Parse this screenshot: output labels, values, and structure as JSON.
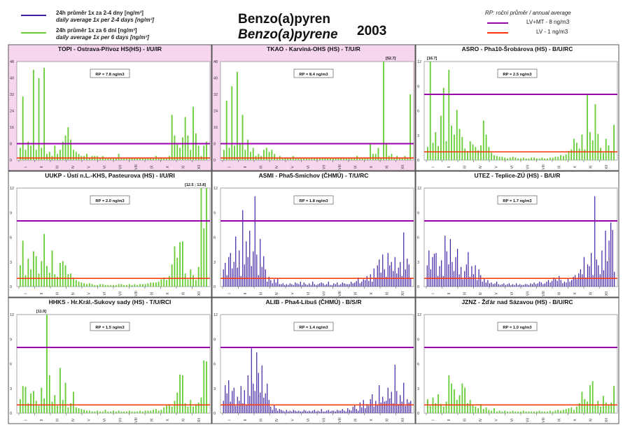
{
  "header": {
    "title_cz": "Benzo(a)pyren",
    "title_en": "Benzo(a)pyrene",
    "year": "2003",
    "legend_left": [
      {
        "color": "#3f1fa0",
        "line1": "24h průměr 1x za 2-4 dny [ng/m³]",
        "line2": "daily average 1x per 2-4 days [ng/m³]"
      },
      {
        "color": "#66cc33",
        "line1": "24h průměr 1x za 6 dní [ng/m³]",
        "line2": "daily average 1x per 6 days [ng/m³]"
      }
    ],
    "legend_right": {
      "title": "RP: roční průměr / annual average",
      "items": [
        {
          "color": "#9900aa",
          "label": "LV+MT - 8 ng/m3"
        },
        {
          "color": "#ff3300",
          "label": "LV   - 1 ng/m3"
        }
      ]
    }
  },
  "colors": {
    "green": "#66cc33",
    "blue": "#3f1fa0",
    "lv_mt": "#9900aa",
    "lv": "#ff3300",
    "pink_bg": "#f6d6ee",
    "frame": "#555555"
  },
  "chart_data": [
    {
      "type": "bar",
      "title": "TOPI - Ostrava-Přívoz HS(HS) - I/U/IR",
      "rp": "RP = 7.8 ng/m3",
      "ylim": [
        0,
        48
      ],
      "yticks": [
        "0",
        "8",
        "16",
        "24",
        "32",
        "40",
        "48"
      ],
      "series_color": "green",
      "pink": true,
      "annotation": "",
      "months": [
        "I",
        "II",
        "III",
        "IV",
        "V",
        "VI",
        "VII",
        "VIII",
        "IX",
        "X",
        "XI",
        "XII"
      ],
      "lines": [
        8,
        1
      ],
      "values": [
        6,
        31,
        5,
        9,
        7,
        44,
        5,
        40,
        6,
        45,
        3,
        4,
        2,
        7,
        3,
        5,
        9,
        12,
        16,
        10,
        5,
        4,
        3,
        2,
        2,
        3,
        1,
        2,
        2,
        2,
        1,
        2,
        1,
        1,
        1,
        1,
        1,
        3,
        1,
        1,
        1,
        1,
        1,
        1,
        1,
        1,
        1,
        1,
        1,
        1,
        1,
        2,
        1,
        1,
        1,
        1,
        2,
        22,
        12,
        8,
        6,
        11,
        21,
        12,
        5,
        26,
        13,
        7,
        2,
        7,
        9
      ]
    },
    {
      "type": "bar",
      "title": "TKAO - Karviná-OHS (HS) - T/U/R",
      "rp": "RP = 8.4 ng/m3",
      "ylim": [
        0,
        48
      ],
      "yticks": [
        "0",
        "8",
        "16",
        "24",
        "32",
        "40",
        "48"
      ],
      "series_color": "green",
      "pink": true,
      "annotation": "[52.7]",
      "months": [
        "I",
        "II",
        "III",
        "IV",
        "V",
        "VI",
        "VII",
        "VIII",
        "IX",
        "X",
        "XI",
        "XII"
      ],
      "lines": [
        8,
        1
      ],
      "values": [
        5,
        29,
        6,
        36,
        7,
        43,
        8,
        22,
        5,
        10,
        4,
        6,
        2,
        3,
        2,
        5,
        6,
        4,
        5,
        3,
        1,
        2,
        1,
        1,
        1,
        1,
        2,
        1,
        1,
        1,
        1,
        1,
        1,
        1,
        1,
        1,
        1,
        1,
        1,
        1,
        1,
        1,
        1,
        1,
        1,
        1,
        1,
        1,
        1,
        1,
        2,
        1,
        1,
        1,
        1,
        8,
        3,
        3,
        6,
        1,
        48,
        8,
        2,
        3,
        1,
        2,
        1,
        1,
        2,
        1,
        32
      ]
    },
    {
      "type": "bar",
      "title": "ASRO - Pha10-Šrobárova (HS) - B/U/RC",
      "rp": "RP = 2.5 ng/m3",
      "ylim": [
        0,
        12
      ],
      "yticks": [
        "0",
        "3",
        "6",
        "9",
        "12"
      ],
      "series_color": "green",
      "pink": false,
      "annotation": "[16.7]",
      "months": [
        "I",
        "II",
        "III",
        "IV",
        "V",
        "VI",
        "VII",
        "VIII",
        "IX",
        "X",
        "XI",
        "XII"
      ],
      "lines": [
        8,
        1
      ],
      "values": [
        1.6,
        12,
        2.1,
        3.4,
        1.7,
        5.4,
        8.8,
        2.3,
        11,
        4.2,
        3.1,
        6.1,
        3.8,
        2.8,
        1.4,
        1.1,
        2.3,
        1.9,
        1.6,
        1.2,
        1.8,
        4.8,
        3.1,
        1.6,
        0.9,
        0.6,
        0.5,
        0.4,
        0.4,
        0.3,
        0.2,
        0.3,
        0.4,
        0.3,
        0.2,
        0.2,
        0.3,
        0.2,
        0.2,
        0.3,
        0.3,
        0.2,
        0.2,
        0.3,
        0.2,
        0.2,
        0.3,
        0.3,
        0.4,
        0.4,
        0.6,
        0.5,
        0.7,
        1.1,
        1.3,
        2.6,
        2.1,
        1.4,
        3.1,
        1.3,
        7.9,
        3.4,
        2.4,
        6.8,
        3.2,
        1.5,
        0.9,
        2.6,
        1.8,
        1.1,
        4.3
      ]
    },
    {
      "type": "bar",
      "title": "UUKP - Ústí n.L.-KHS, Pasteurova (HS) - I/U/RI",
      "rp": "RP = 2.0 ng/m3",
      "ylim": [
        0,
        12
      ],
      "yticks": [
        "0",
        "3",
        "6",
        "9",
        "12"
      ],
      "series_color": "green",
      "pink": false,
      "annotation": "[12.5 ; 13.8]",
      "months": [
        "I",
        "II",
        "III",
        "IV",
        "V",
        "VI",
        "VII",
        "VIII",
        "IX",
        "X",
        "XI",
        "XII"
      ],
      "lines": [
        8,
        1
      ],
      "values": [
        2.6,
        5.6,
        1.4,
        3.4,
        2.1,
        4.3,
        3.7,
        1.6,
        3.1,
        6.4,
        2.5,
        1.7,
        4.4,
        1.5,
        1.2,
        2.9,
        3.1,
        2.6,
        1.5,
        1.6,
        1.1,
        0.8,
        0.6,
        0.5,
        0.4,
        0.3,
        0.4,
        0.3,
        0.2,
        0.2,
        0.3,
        0.3,
        0.2,
        0.2,
        0.2,
        0.2,
        0.2,
        0.3,
        0.3,
        0.2,
        0.2,
        0.3,
        0.2,
        0.3,
        0.2,
        0.3,
        0.3,
        0.3,
        0.4,
        0.5,
        0.5,
        0.5,
        0.6,
        0.9,
        1.1,
        0.8,
        1.3,
        2.7,
        4.9,
        3.5,
        5.4,
        5.5,
        1.6,
        0.9,
        2.1,
        1.4,
        0.8,
        2.4,
        12,
        7.1,
        12
      ]
    },
    {
      "type": "bar",
      "title": "ASMI - Pha5-Smíchov (ČHMÚ) - T/U/RC",
      "rp": "RP = 1.8 ng/m3",
      "ylim": [
        0,
        12
      ],
      "yticks": [
        "0",
        "3",
        "6",
        "9",
        "12"
      ],
      "series_color": "blue",
      "pink": false,
      "annotation": "",
      "months": [
        "I",
        "II",
        "III",
        "IV",
        "V",
        "VI",
        "VII",
        "VIII",
        "IX",
        "X",
        "XI",
        "XII"
      ],
      "lines": [
        8,
        1
      ],
      "values": [
        2.1,
        2.9,
        1.4,
        3.6,
        4.1,
        2.2,
        3.0,
        6.1,
        2.3,
        4.4,
        1.3,
        9.3,
        2.7,
        5.5,
        3.6,
        6.8,
        2.5,
        4.3,
        11.0,
        3.9,
        1.4,
        5.8,
        2.4,
        3.7,
        2.1,
        0.6,
        1.2,
        0.8,
        0.4,
        0.9,
        0.5,
        1.0,
        0.3,
        0.3,
        0.4,
        0.2,
        0.3,
        0.2,
        0.4,
        0.3,
        0.2,
        0.5,
        0.4,
        0.3,
        0.6,
        0.2,
        0.5,
        0.3,
        0.2,
        0.4,
        0.2,
        0.6,
        0.3,
        0.2,
        0.3,
        0.4,
        0.5,
        0.4,
        0.2,
        0.3,
        0.6,
        0.2,
        0.2,
        0.4,
        0.3,
        0.5,
        0.2,
        0.3,
        0.5,
        0.4,
        0.3,
        0.3,
        0.3,
        0.6,
        0.4,
        0.5,
        0.7,
        1.1,
        0.4,
        0.6,
        0.9,
        0.8,
        1.3,
        0.7,
        1.5,
        0.6,
        2.2,
        1.1,
        2.6,
        3.3,
        1.7,
        3.9,
        2.1,
        1.2,
        4.1,
        2.6,
        3.0,
        1.9,
        3.6,
        1.6,
        2.3,
        3.0,
        1.3,
        6.6,
        2.1,
        3.4,
        2.7,
        1.1
      ]
    },
    {
      "type": "bar",
      "title": "UTEZ - Teplice-ZÚ (HS) - B/U/R",
      "rp": "RP = 1.7 ng/m3",
      "ylim": [
        0,
        12
      ],
      "yticks": [
        "0",
        "3",
        "6",
        "9",
        "12"
      ],
      "series_color": "blue",
      "pink": false,
      "annotation": "",
      "months": [
        "I",
        "II",
        "III",
        "IV",
        "V",
        "VI",
        "VII",
        "VIII",
        "IX",
        "X",
        "XI",
        "XII"
      ],
      "lines": [
        8,
        1
      ],
      "values": [
        2.6,
        4.4,
        2.1,
        3.6,
        4.0,
        4.1,
        1.3,
        2.5,
        3.2,
        1.3,
        6.2,
        4.3,
        2.7,
        5.8,
        3.0,
        1.9,
        3.6,
        4.6,
        1.5,
        2.4,
        0.9,
        1.9,
        2.7,
        4.2,
        1.2,
        2.5,
        1.5,
        2.6,
        0.8,
        2.1,
        1.4,
        0.6,
        1.0,
        0.5,
        0.8,
        0.4,
        0.5,
        0.3,
        0.4,
        0.6,
        0.3,
        0.2,
        0.3,
        0.4,
        0.2,
        0.3,
        0.4,
        0.2,
        0.3,
        0.2,
        0.4,
        0.2,
        0.3,
        0.2,
        0.2,
        0.3,
        0.3,
        0.2,
        0.4,
        0.3,
        0.5,
        0.3,
        0.4,
        0.6,
        0.5,
        0.3,
        0.4,
        0.6,
        0.8,
        0.5,
        0.7,
        1.1,
        0.9,
        0.7,
        1.3,
        0.8,
        0.4,
        0.6,
        0.5,
        1.0,
        0.6,
        0.8,
        1.2,
        1.4,
        0.9,
        1.6,
        2.1,
        1.5,
        3.6,
        1.1,
        2.7,
        2.5,
        4.1,
        1.4,
        11.0,
        3.3,
        2.6,
        1.5,
        4.4,
        2.0,
        6.8,
        3.1,
        5.6,
        7.8,
        6.9,
        1.8
      ]
    },
    {
      "type": "bar",
      "title": "HHKS - Hr.Král.-Sukovy sady (HS) - T/U/RCI",
      "rp": "RP = 1.5 ng/m3",
      "ylim": [
        0,
        12
      ],
      "yticks": [
        "0",
        "3",
        "6",
        "9",
        "12"
      ],
      "series_color": "green",
      "pink": false,
      "annotation": "[11.9]",
      "months": [
        "I",
        "II",
        "III",
        "IV",
        "V",
        "VI",
        "VII",
        "VIII",
        "IX",
        "X",
        "XI",
        "XII"
      ],
      "lines": [
        8,
        1
      ],
      "values": [
        1.7,
        3.3,
        3.2,
        1.2,
        2.4,
        2.7,
        1.5,
        0.9,
        3.1,
        1.8,
        12,
        4.6,
        1.4,
        2.2,
        0.9,
        5.5,
        1.6,
        3.7,
        0.7,
        1.2,
        2.6,
        0.7,
        0.6,
        0.5,
        0.4,
        0.3,
        0.3,
        0.2,
        0.2,
        0.3,
        0.2,
        0.2,
        0.4,
        0.2,
        0.2,
        0.3,
        0.2,
        0.3,
        0.2,
        0.2,
        0.2,
        0.3,
        0.2,
        0.2,
        0.2,
        0.3,
        0.2,
        0.3,
        0.3,
        0.3,
        0.4,
        0.5,
        0.3,
        0.4,
        0.7,
        1.0,
        1.1,
        0.8,
        1.5,
        2.5,
        4.7,
        4.6,
        1.2,
        0.8,
        1.6,
        0.8,
        1.1,
        1.3,
        1.9,
        6.4,
        6.3
      ]
    },
    {
      "type": "bar",
      "title": "ALIB - Pha4-Libuš (ČHMÚ) - B/S/R",
      "rp": "RP = 1.4 ng/m3",
      "ylim": [
        0,
        12
      ],
      "yticks": [
        "0",
        "3",
        "6",
        "9",
        "12"
      ],
      "series_color": "blue",
      "pink": false,
      "annotation": "",
      "months": [
        "I",
        "II",
        "III",
        "IV",
        "V",
        "VI",
        "VII",
        "VIII",
        "IX",
        "X",
        "XI",
        "XII"
      ],
      "lines": [
        8,
        1
      ],
      "values": [
        1.5,
        3.4,
        2.4,
        4.0,
        1.4,
        2.7,
        3.1,
        0.9,
        2.0,
        1.5,
        3.3,
        1.2,
        2.8,
        1.0,
        4.6,
        2.1,
        7.9,
        3.6,
        2.7,
        7.4,
        4.9,
        2.5,
        5.8,
        1.9,
        2.4,
        3.6,
        1.6,
        0.8,
        0.4,
        1.0,
        0.6,
        0.3,
        0.5,
        0.4,
        0.3,
        0.2,
        0.4,
        0.2,
        0.3,
        0.2,
        0.4,
        0.3,
        0.2,
        0.3,
        0.2,
        0.2,
        0.4,
        0.3,
        0.2,
        0.3,
        0.2,
        0.3,
        0.4,
        0.2,
        0.3,
        0.2,
        0.5,
        0.2,
        0.2,
        0.3,
        0.4,
        0.2,
        0.3,
        0.3,
        0.2,
        0.4,
        0.3,
        0.3,
        0.5,
        0.3,
        0.2,
        0.6,
        0.4,
        0.3,
        0.8,
        1.0,
        0.5,
        0.3,
        1.3,
        0.7,
        1.6,
        0.6,
        1.1,
        0.9,
        1.7,
        2.3,
        0.8,
        1.5,
        1.0,
        3.4,
        1.3,
        2.0,
        1.4,
        1.5,
        3.1,
        1.8,
        2.6,
        1.2,
        5.9,
        2.7,
        1.1,
        2.2,
        1.4,
        3.7,
        0.9,
        1.7,
        1.3,
        1.5
      ]
    },
    {
      "type": "bar",
      "title": "JZNZ - Žďár nad Sázavou (HS) - B/U/RC",
      "rp": "RP = 1.0 ng/m3",
      "ylim": [
        0,
        12
      ],
      "yticks": [
        "0",
        "3",
        "6",
        "9",
        "12"
      ],
      "series_color": "green",
      "pink": false,
      "annotation": "",
      "months": [
        "I",
        "II",
        "III",
        "IV",
        "V",
        "VI",
        "VII",
        "VIII",
        "IX",
        "X",
        "XI",
        "XII"
      ],
      "lines": [
        8,
        1
      ],
      "values": [
        1.7,
        0.9,
        1.9,
        1.2,
        2.3,
        1.1,
        0.8,
        1.4,
        4.6,
        3.6,
        2.9,
        1.6,
        2.2,
        3.6,
        3.1,
        1.2,
        1.6,
        1.0,
        0.8,
        0.6,
        1.1,
        0.5,
        0.7,
        0.4,
        0.3,
        0.6,
        0.2,
        0.3,
        0.2,
        0.3,
        0.2,
        0.2,
        0.3,
        0.2,
        0.2,
        0.2,
        0.3,
        0.2,
        0.2,
        0.2,
        0.2,
        0.2,
        0.3,
        0.2,
        0.2,
        0.2,
        0.3,
        0.2,
        0.3,
        0.4,
        0.3,
        0.4,
        0.5,
        0.6,
        0.7,
        0.4,
        0.8,
        1.2,
        2.6,
        1.7,
        1.4,
        3.4,
        3.9,
        1.0,
        1.5,
        0.8,
        2.1,
        1.3,
        1.0,
        1.3,
        3.3
      ]
    }
  ]
}
